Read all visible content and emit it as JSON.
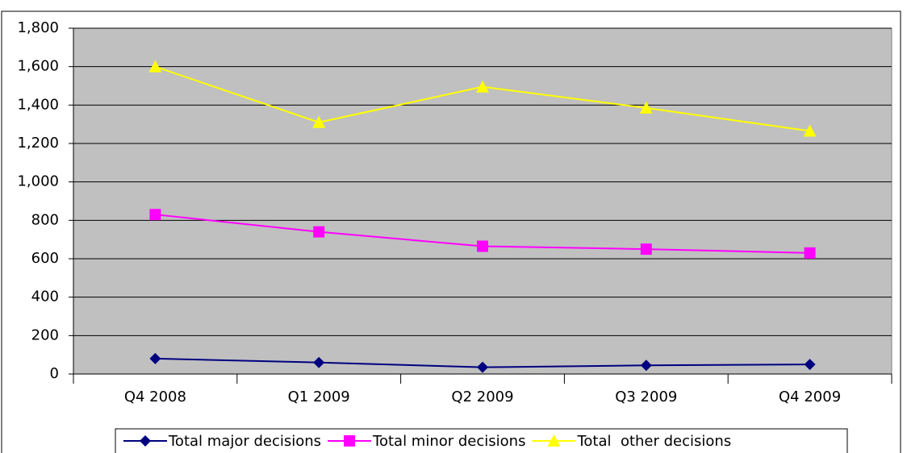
{
  "chart_data": {
    "type": "line",
    "categories": [
      "Q4 2008",
      "Q1 2009",
      "Q2 2009",
      "Q3 2009",
      "Q4 2009"
    ],
    "series": [
      {
        "name": "Total major decisions",
        "color": "#000080",
        "marker": "diamond",
        "values": [
          80,
          60,
          35,
          45,
          50
        ]
      },
      {
        "name": "Total minor decisions",
        "color": "#ff00ff",
        "marker": "square",
        "values": [
          830,
          740,
          665,
          650,
          630
        ]
      },
      {
        "name": "Total  other decisions",
        "color": "#ffff00",
        "marker": "triangle",
        "values": [
          1600,
          1310,
          1495,
          1385,
          1265
        ]
      }
    ],
    "ylim": [
      0,
      1800
    ],
    "yticks": [
      0,
      200,
      400,
      600,
      800,
      {
        "value": 1000,
        "label": "1,000"
      },
      {
        "value": 1200,
        "label": "1,200"
      },
      {
        "value": 1400,
        "label": "1,400"
      },
      {
        "value": 1600,
        "label": "1,600"
      },
      {
        "value": 1800,
        "label": "1,800"
      }
    ],
    "grid": true,
    "legend": "bottom"
  }
}
